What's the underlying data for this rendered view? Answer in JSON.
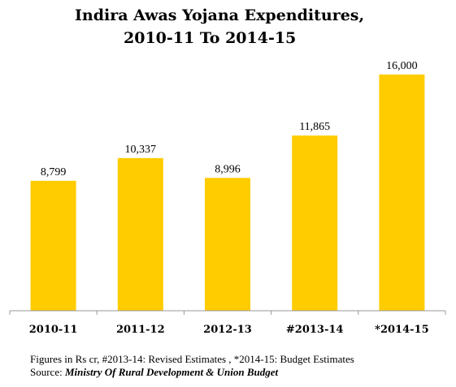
{
  "title": {
    "line1": "Indira Awas Yojana Expenditures,",
    "line2": "2010-11 To 2014-15"
  },
  "footnotes": {
    "notes": "Figures in Rs cr, #2013-14: Revised Estimates , *2014-15: Budget Estimates",
    "source_label": "Source:",
    "source_value": "Ministry Of Rural Development & Union Budget"
  },
  "colors": {
    "bar": "#FFCC00",
    "axis": "#999999",
    "text": "#000000"
  },
  "chart_data": {
    "type": "bar",
    "title": "Indira Awas Yojana Expenditures, 2010-11 To 2014-15",
    "categories": [
      "2010-11",
      "2011-12",
      "2012-13",
      "#2013-14",
      "*2014-15"
    ],
    "values": [
      8799,
      10337,
      8996,
      11865,
      16000
    ],
    "value_labels": [
      "8,799",
      "10,337",
      "8,996",
      "11,865",
      "16,000"
    ],
    "ylim": [
      0,
      16500
    ],
    "grid": false,
    "legend": "none"
  }
}
